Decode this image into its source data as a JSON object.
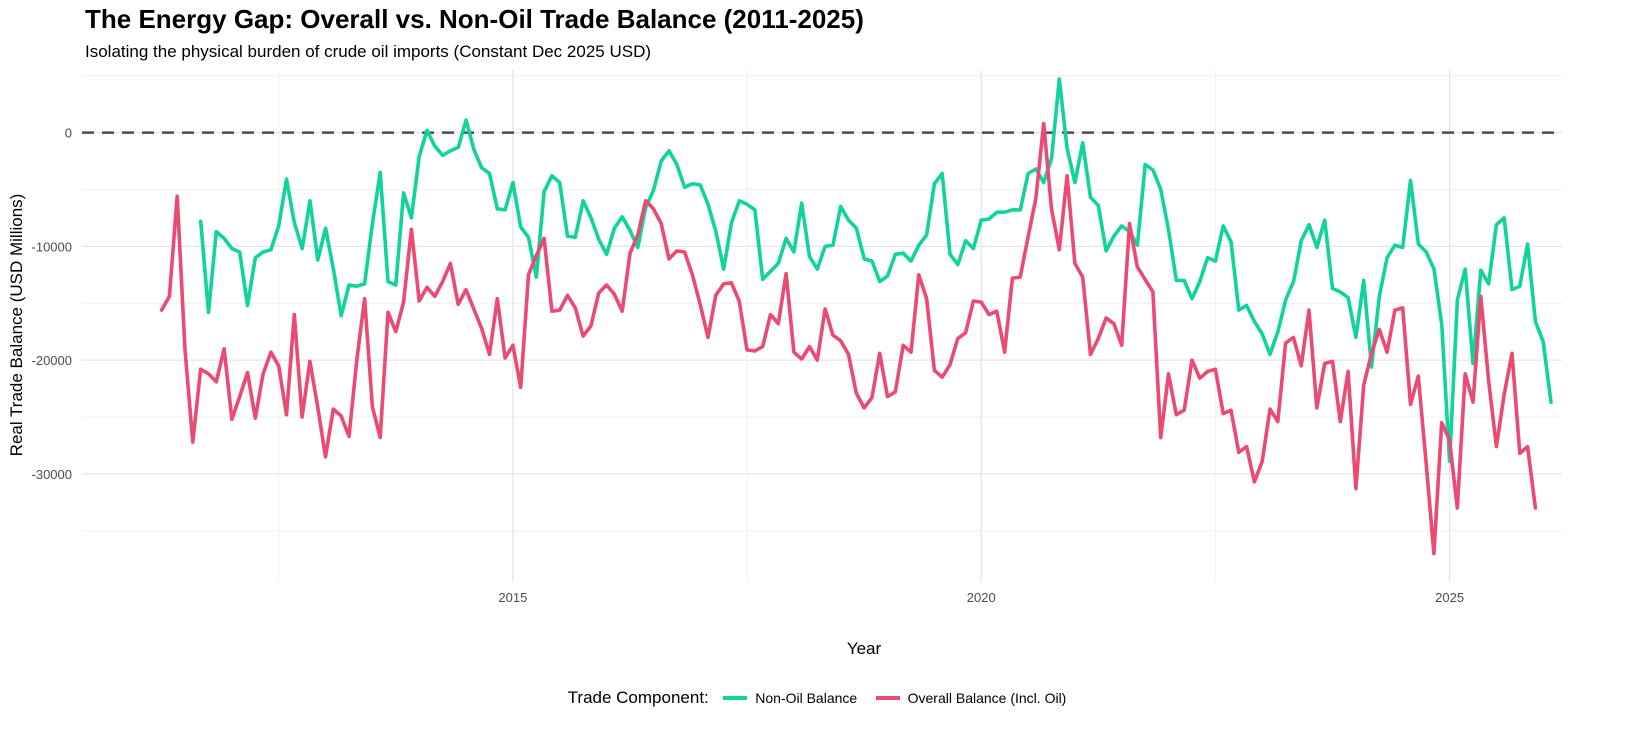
{
  "chart_data": {
    "type": "line",
    "title": "The Energy Gap: Overall vs. Non-Oil Trade Balance (2011-2025)",
    "subtitle": "Isolating the physical burden of crude oil imports (Constant Dec 2025 USD)",
    "xlabel": "Year",
    "ylabel": "Real Trade Balance (USD Millions)",
    "xlim": [
      2010.4,
      2026.2
    ],
    "ylim": [
      -39500,
      5500
    ],
    "x_ticks": [
      2015,
      2020,
      2025
    ],
    "y_ticks": [
      -30000,
      -20000,
      -10000,
      0
    ],
    "reference_line": {
      "y": 0,
      "style": "dashed",
      "color": "#4d4d4d"
    },
    "grid": true,
    "legend_position": "bottom",
    "legend_title": "Trade Component:",
    "series": [
      {
        "name": "Non-Oil Balance",
        "color": "#10d49b",
        "start": 2011.667,
        "step": 0.08333,
        "values": [
          -7800,
          -15800,
          -8700,
          -9300,
          -10200,
          -10500,
          -15200,
          -11000,
          -10500,
          -10300,
          -8200,
          -4100,
          -7900,
          -10200,
          -6000,
          -11200,
          -8400,
          -12000,
          -16100,
          -13400,
          -13500,
          -13300,
          -8000,
          -3500,
          -13100,
          -13400,
          -5300,
          -7500,
          -2100,
          200,
          -1200,
          -2000,
          -1600,
          -1300,
          1100,
          -1500,
          -3100,
          -3600,
          -6700,
          -6800,
          -4400,
          -8300,
          -9200,
          -12700,
          -5200,
          -3800,
          -4400,
          -9100,
          -9200,
          -6000,
          -7500,
          -9400,
          -10700,
          -8400,
          -7400,
          -8600,
          -10100,
          -6600,
          -5100,
          -2500,
          -1600,
          -2800,
          -4800,
          -4500,
          -4600,
          -6300,
          -8700,
          -12000,
          -7900,
          -6000,
          -6300,
          -6800,
          -12900,
          -12200,
          -11500,
          -9300,
          -10500,
          -6200,
          -10900,
          -12000,
          -10000,
          -9900,
          -6500,
          -7700,
          -8400,
          -11100,
          -11300,
          -13100,
          -12600,
          -10700,
          -10600,
          -11300,
          -9900,
          -9000,
          -4500,
          -3600,
          -10700,
          -11600,
          -9500,
          -10200,
          -7700,
          -7600,
          -7000,
          -7000,
          -6800,
          -6800,
          -3600,
          -3200,
          -4400,
          -2300,
          4700,
          -1400,
          -4400,
          -900,
          -5700,
          -6400,
          -10400,
          -9100,
          -8200,
          -8700,
          -9900,
          -2800,
          -3300,
          -5000,
          -8600,
          -13000,
          -13000,
          -14600,
          -13100,
          -11000,
          -11300,
          -8200,
          -9600,
          -15600,
          -15200,
          -16600,
          -17700,
          -19500,
          -17500,
          -14700,
          -13100,
          -9500,
          -8100,
          -10100,
          -7700,
          -13700,
          -14000,
          -14500,
          -18000,
          -13000,
          -20600,
          -14400,
          -11000,
          -9900,
          -10100,
          -4200,
          -9800,
          -10500,
          -12000,
          -16900,
          -28900,
          -14700,
          -12000,
          -20300,
          -12100,
          -13300,
          -8100,
          -7500,
          -13800,
          -13500,
          -9800,
          -16600,
          -18400,
          -23700
        ]
      },
      {
        "name": "Overall Balance (Incl. Oil)",
        "color": "#eb4a72",
        "start": 2011.25,
        "step": 0.08333,
        "values": [
          -15600,
          -14400,
          -5600,
          -19100,
          -27200,
          -20800,
          -21200,
          -21900,
          -19000,
          -25200,
          -23200,
          -21100,
          -25100,
          -21200,
          -19300,
          -20500,
          -24800,
          -16000,
          -25000,
          -20100,
          -24100,
          -28500,
          -24300,
          -24900,
          -26700,
          -20000,
          -14600,
          -24100,
          -26800,
          -15800,
          -17500,
          -14900,
          -8500,
          -14800,
          -13600,
          -14400,
          -13100,
          -11500,
          -15100,
          -13800,
          -15500,
          -17200,
          -19500,
          -14600,
          -19800,
          -18700,
          -22400,
          -12500,
          -10800,
          -9300,
          -15700,
          -15600,
          -14300,
          -15400,
          -17900,
          -17000,
          -14100,
          -13400,
          -14200,
          -15700,
          -10600,
          -9000,
          -6000,
          -6700,
          -8000,
          -11100,
          -10400,
          -10500,
          -12500,
          -15100,
          -18000,
          -14300,
          -13300,
          -13200,
          -14800,
          -19100,
          -19200,
          -18800,
          -16000,
          -16800,
          -12400,
          -19300,
          -19900,
          -18800,
          -20000,
          -15500,
          -17800,
          -18300,
          -19500,
          -22900,
          -24200,
          -23300,
          -19400,
          -23200,
          -22800,
          -18700,
          -19300,
          -12500,
          -14600,
          -20900,
          -21500,
          -20400,
          -18100,
          -17600,
          -14800,
          -14900,
          -16000,
          -15700,
          -19300,
          -12800,
          -12700,
          -9200,
          -5800,
          800,
          -6700,
          -10300,
          -3800,
          -11500,
          -12700,
          -19500,
          -18100,
          -16300,
          -16800,
          -18700,
          -8000,
          -11800,
          -12900,
          -14000,
          -26800,
          -21200,
          -24800,
          -24400,
          -20000,
          -21600,
          -21000,
          -20800,
          -24700,
          -24400,
          -28100,
          -27600,
          -30700,
          -28900,
          -24300,
          -25400,
          -18500,
          -18000,
          -20500,
          -15600,
          -24200,
          -20300,
          -20100,
          -25400,
          -21000,
          -31300,
          -22200,
          -19400,
          -17300,
          -19300,
          -15600,
          -15400,
          -23900,
          -21400,
          -29000,
          -37000,
          -25500,
          -27000,
          -33000,
          -21200,
          -23700,
          -14400,
          -21800,
          -27600,
          -23000,
          -19400,
          -28200,
          -27600,
          -33000
        ]
      }
    ]
  }
}
